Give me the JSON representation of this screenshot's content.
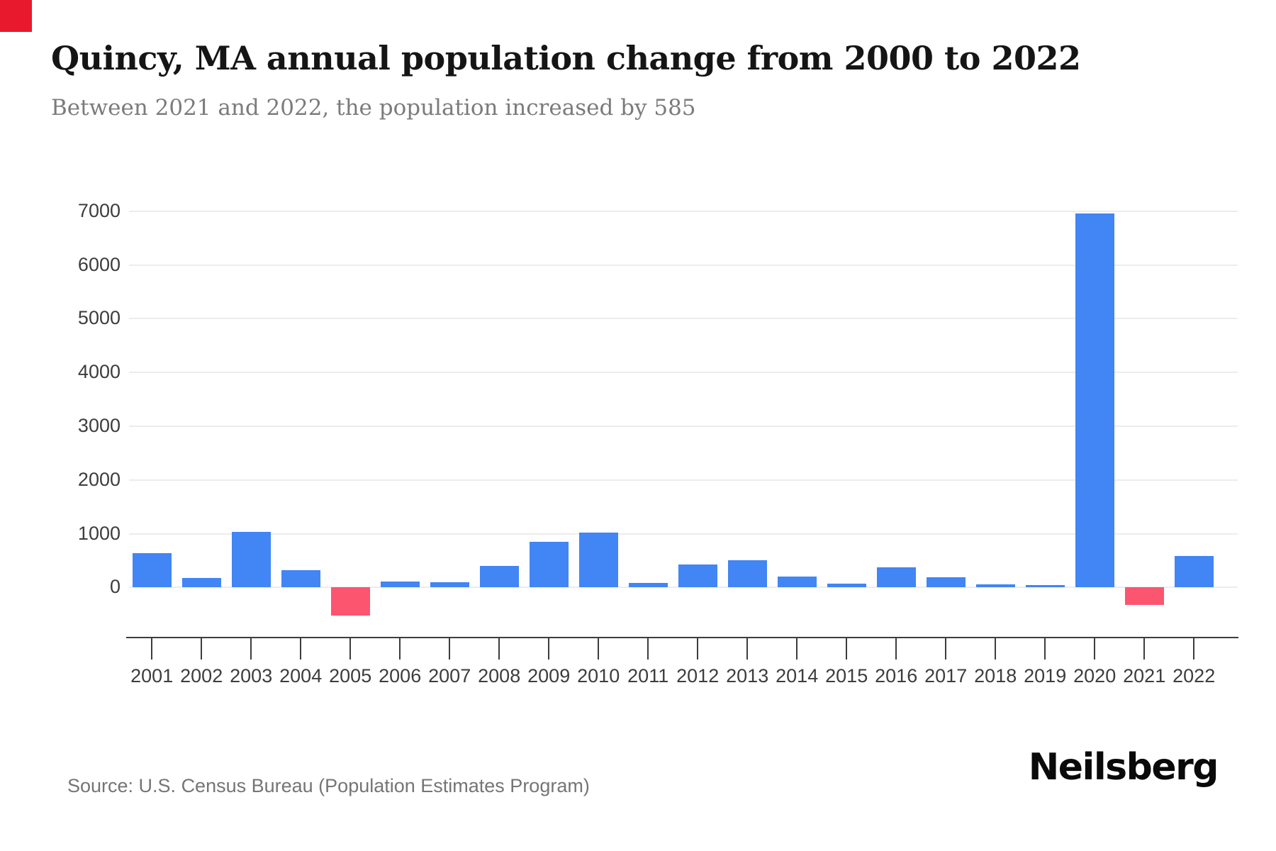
{
  "branding": {
    "corner_square_color": "#e9192d",
    "logo_text": "Neilsberg"
  },
  "header": {
    "title": "Quincy, MA annual population change from 2000 to 2022",
    "subtitle": "Between 2021 and 2022, the population increased by 585"
  },
  "footer": {
    "source": "Source: U.S. Census Bureau (Population Estimates Program)"
  },
  "chart_data": {
    "type": "bar",
    "title": "Quincy, MA annual population change from 2000 to 2022",
    "subtitle": "Between 2021 and 2022, the population increased by 585",
    "categories": [
      "2001",
      "2002",
      "2003",
      "2004",
      "2005",
      "2006",
      "2007",
      "2008",
      "2009",
      "2010",
      "2011",
      "2012",
      "2013",
      "2014",
      "2015",
      "2016",
      "2017",
      "2018",
      "2019",
      "2020",
      "2021",
      "2022"
    ],
    "values": [
      640,
      180,
      1030,
      320,
      -520,
      105,
      90,
      405,
      850,
      1020,
      85,
      420,
      500,
      200,
      70,
      370,
      185,
      60,
      45,
      6955,
      -330,
      585
    ],
    "y_ticks": [
      0,
      1000,
      2000,
      3000,
      4000,
      5000,
      6000,
      7000
    ],
    "ylim": [
      -600,
      7200
    ],
    "xlabel": "",
    "ylabel": "",
    "grid": true,
    "legend": "none",
    "colors": {
      "positive_bar": "#4285f4",
      "negative_bar": "#fc5570",
      "gridline": "#ececec",
      "axis_text": "#3d3d3d"
    }
  }
}
